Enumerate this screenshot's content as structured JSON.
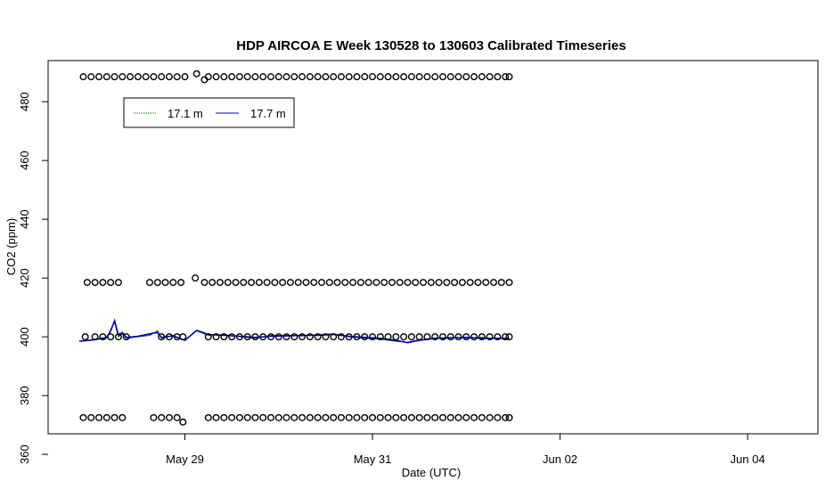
{
  "chart_data": {
    "type": "scatter",
    "title": "HDP AIRCOA E  Week 130528 to 130603  Calibrated Timeseries",
    "xlabel": "Date (UTC)",
    "ylabel": "CO2 (ppm)",
    "x_unit": "days",
    "x_tick_labels": [
      "May 29",
      "May 31",
      "Jun 02",
      "Jun 04"
    ],
    "x_ticks": [
      "2013-05-29",
      "2013-05-31",
      "2013-06-02",
      "2013-06-04"
    ],
    "y_ticks": [
      360,
      380,
      400,
      420,
      440,
      460,
      480
    ],
    "xlim": [
      "2013-05-27 13:00",
      "2013-06-04 18:00"
    ],
    "ylim": [
      367,
      494
    ],
    "legend": {
      "placement": "top-left",
      "entries": [
        {
          "label": "17.1 m",
          "color": "#006400"
        },
        {
          "label": "17.7 m",
          "color": "#0000cc"
        }
      ]
    },
    "colors": {
      "points": "#000000",
      "series_17_1": "#006400",
      "series_17_7": "#0000cc"
    },
    "point_groups": [
      {
        "level": 488.5,
        "times": [
          "2013-05-27 22:00",
          "2013-05-28 00:00",
          "2013-05-28 02:00",
          "2013-05-28 04:00",
          "2013-05-28 06:00",
          "2013-05-28 08:00",
          "2013-05-28 10:00",
          "2013-05-28 12:00",
          "2013-05-28 14:00",
          "2013-05-28 16:00",
          "2013-05-28 18:00",
          "2013-05-28 20:00",
          "2013-05-28 22:00",
          "2013-05-29 00:00",
          "2013-05-29 06:00",
          "2013-05-29 08:00",
          "2013-05-29 10:00",
          "2013-05-29 12:00",
          "2013-05-29 14:00",
          "2013-05-29 16:00",
          "2013-05-29 18:00",
          "2013-05-29 20:00",
          "2013-05-29 22:00",
          "2013-05-30 00:00",
          "2013-05-30 02:00",
          "2013-05-30 04:00",
          "2013-05-30 06:00",
          "2013-05-30 08:00",
          "2013-05-30 10:00",
          "2013-05-30 12:00",
          "2013-05-30 14:00",
          "2013-05-30 16:00",
          "2013-05-30 18:00",
          "2013-05-30 20:00",
          "2013-05-30 22:00",
          "2013-05-31 00:00",
          "2013-05-31 02:00",
          "2013-05-31 04:00",
          "2013-05-31 06:00",
          "2013-05-31 08:00",
          "2013-05-31 10:00",
          "2013-05-31 12:00",
          "2013-05-31 14:00",
          "2013-05-31 16:00",
          "2013-05-31 18:00",
          "2013-05-31 20:00",
          "2013-05-31 22:00",
          "2013-06-01 00:00",
          "2013-06-01 02:00",
          "2013-06-01 04:00",
          "2013-06-01 06:00",
          "2013-06-01 08:00",
          "2013-06-01 10:00",
          "2013-06-01 11:00"
        ]
      },
      {
        "level": 418.5,
        "times": [
          "2013-05-27 23:00",
          "2013-05-28 01:00",
          "2013-05-28 03:00",
          "2013-05-28 05:00",
          "2013-05-28 07:00",
          "2013-05-28 15:00",
          "2013-05-28 17:00",
          "2013-05-28 19:00",
          "2013-05-28 21:00",
          "2013-05-28 23:00",
          "2013-05-29 05:00",
          "2013-05-29 07:00",
          "2013-05-29 09:00",
          "2013-05-29 11:00",
          "2013-05-29 13:00",
          "2013-05-29 15:00",
          "2013-05-29 17:00",
          "2013-05-29 19:00",
          "2013-05-29 21:00",
          "2013-05-29 23:00",
          "2013-05-30 01:00",
          "2013-05-30 03:00",
          "2013-05-30 05:00",
          "2013-05-30 07:00",
          "2013-05-30 09:00",
          "2013-05-30 11:00",
          "2013-05-30 13:00",
          "2013-05-30 15:00",
          "2013-05-30 17:00",
          "2013-05-30 19:00",
          "2013-05-30 21:00",
          "2013-05-30 23:00",
          "2013-05-31 01:00",
          "2013-05-31 03:00",
          "2013-05-31 05:00",
          "2013-05-31 07:00",
          "2013-05-31 09:00",
          "2013-05-31 11:00",
          "2013-05-31 13:00",
          "2013-05-31 15:00",
          "2013-05-31 17:00",
          "2013-05-31 19:00",
          "2013-05-31 21:00",
          "2013-05-31 23:00",
          "2013-06-01 01:00",
          "2013-06-01 03:00",
          "2013-06-01 05:00",
          "2013-06-01 07:00",
          "2013-06-01 09:00",
          "2013-06-01 11:00"
        ]
      },
      {
        "level": 400,
        "times": [
          "2013-05-27 22:30",
          "2013-05-28 01:00",
          "2013-05-28 03:00",
          "2013-05-28 05:00",
          "2013-05-28 07:00",
          "2013-05-28 09:00",
          "2013-05-28 18:00",
          "2013-05-28 20:00",
          "2013-05-28 22:00",
          "2013-05-28 23:30",
          "2013-05-29 06:00",
          "2013-05-29 08:00",
          "2013-05-29 10:00",
          "2013-05-29 12:00",
          "2013-05-29 14:00",
          "2013-05-29 16:00",
          "2013-05-29 18:00",
          "2013-05-29 20:00",
          "2013-05-29 22:00",
          "2013-05-30 00:00",
          "2013-05-30 02:00",
          "2013-05-30 04:00",
          "2013-05-30 06:00",
          "2013-05-30 08:00",
          "2013-05-30 10:00",
          "2013-05-30 12:00",
          "2013-05-30 14:00",
          "2013-05-30 16:00",
          "2013-05-30 18:00",
          "2013-05-30 20:00",
          "2013-05-30 22:00",
          "2013-05-31 00:00",
          "2013-05-31 02:00",
          "2013-05-31 04:00",
          "2013-05-31 06:00",
          "2013-05-31 08:00",
          "2013-05-31 10:00",
          "2013-05-31 12:00",
          "2013-05-31 14:00",
          "2013-05-31 16:00",
          "2013-05-31 18:00",
          "2013-05-31 20:00",
          "2013-05-31 22:00",
          "2013-06-01 00:00",
          "2013-06-01 02:00",
          "2013-06-01 04:00",
          "2013-06-01 06:00",
          "2013-06-01 08:00",
          "2013-06-01 10:00",
          "2013-06-01 11:00"
        ]
      },
      {
        "level": 372.5,
        "times": [
          "2013-05-27 22:00",
          "2013-05-28 00:00",
          "2013-05-28 02:00",
          "2013-05-28 04:00",
          "2013-05-28 06:00",
          "2013-05-28 08:00",
          "2013-05-28 16:00",
          "2013-05-28 18:00",
          "2013-05-28 20:00",
          "2013-05-28 22:00",
          "2013-05-29 06:00",
          "2013-05-29 08:00",
          "2013-05-29 10:00",
          "2013-05-29 12:00",
          "2013-05-29 14:00",
          "2013-05-29 16:00",
          "2013-05-29 18:00",
          "2013-05-29 20:00",
          "2013-05-29 22:00",
          "2013-05-30 00:00",
          "2013-05-30 02:00",
          "2013-05-30 04:00",
          "2013-05-30 06:00",
          "2013-05-30 08:00",
          "2013-05-30 10:00",
          "2013-05-30 12:00",
          "2013-05-30 14:00",
          "2013-05-30 16:00",
          "2013-05-30 18:00",
          "2013-05-30 20:00",
          "2013-05-30 22:00",
          "2013-05-31 00:00",
          "2013-05-31 02:00",
          "2013-05-31 04:00",
          "2013-05-31 06:00",
          "2013-05-31 08:00",
          "2013-05-31 10:00",
          "2013-05-31 12:00",
          "2013-05-31 14:00",
          "2013-05-31 16:00",
          "2013-05-31 18:00",
          "2013-05-31 20:00",
          "2013-05-31 22:00",
          "2013-06-01 00:00",
          "2013-06-01 02:00",
          "2013-06-01 04:00",
          "2013-06-01 06:00",
          "2013-06-01 08:00",
          "2013-06-01 10:00",
          "2013-06-01 11:00"
        ]
      }
    ],
    "outlier_points": [
      {
        "x": "2013-05-29 03:00",
        "y": 489.5
      },
      {
        "x": "2013-05-29 05:00",
        "y": 487.5
      },
      {
        "x": "2013-05-29 02:40",
        "y": 420
      },
      {
        "x": "2013-05-28 23:30",
        "y": 371
      }
    ],
    "series": [
      {
        "name": "17.1 m",
        "color": "#006400",
        "points": [
          [
            "2013-05-27 21:00",
            398.5
          ],
          [
            "2013-05-28 00:00",
            398.8
          ],
          [
            "2013-05-28 02:00",
            399.2
          ],
          [
            "2013-05-28 04:00",
            399.6
          ],
          [
            "2013-05-28 05:00",
            402.5
          ],
          [
            "2013-05-28 06:00",
            405
          ],
          [
            "2013-05-28 07:00",
            400
          ],
          [
            "2013-05-28 08:00",
            401
          ],
          [
            "2013-05-28 09:00",
            399.5
          ],
          [
            "2013-05-28 12:00",
            400
          ],
          [
            "2013-05-28 15:00",
            400.5
          ],
          [
            "2013-05-28 17:00",
            402
          ],
          [
            "2013-05-28 18:00",
            399.5
          ],
          [
            "2013-05-28 21:00",
            400.5
          ],
          [
            "2013-05-29 00:00",
            398.8
          ],
          [
            "2013-05-29 03:00",
            402
          ],
          [
            "2013-05-29 06:00",
            400.5
          ],
          [
            "2013-05-29 10:00",
            400.8
          ],
          [
            "2013-05-29 14:00",
            400
          ],
          [
            "2013-05-29 18:00",
            399.5
          ],
          [
            "2013-05-29 22:00",
            400.5
          ],
          [
            "2013-05-30 02:00",
            400.5
          ],
          [
            "2013-05-30 06:00",
            400.3
          ],
          [
            "2013-05-30 10:00",
            400.8
          ],
          [
            "2013-05-30 14:00",
            401
          ],
          [
            "2013-05-30 18:00",
            400
          ],
          [
            "2013-05-30 22:00",
            399.5
          ],
          [
            "2013-05-31 02:00",
            399.2
          ],
          [
            "2013-05-31 06:00",
            398.5
          ],
          [
            "2013-05-31 09:00",
            398.2
          ],
          [
            "2013-05-31 12:00",
            399
          ],
          [
            "2013-05-31 16:00",
            399.5
          ],
          [
            "2013-05-31 20:00",
            399.8
          ],
          [
            "2013-06-01 00:00",
            399.5
          ],
          [
            "2013-06-01 04:00",
            399.8
          ],
          [
            "2013-06-01 08:00",
            399.3
          ],
          [
            "2013-06-01 11:00",
            399.6
          ]
        ]
      },
      {
        "name": "17.7 m",
        "color": "#0000cc",
        "points": [
          [
            "2013-05-27 21:00",
            398.5
          ],
          [
            "2013-05-28 00:00",
            398.9
          ],
          [
            "2013-05-28 02:00",
            399.3
          ],
          [
            "2013-05-28 04:00",
            399.8
          ],
          [
            "2013-05-28 05:00",
            402
          ],
          [
            "2013-05-28 06:00",
            405.5
          ],
          [
            "2013-05-28 07:00",
            400.5
          ],
          [
            "2013-05-28 08:00",
            401.5
          ],
          [
            "2013-05-28 09:00",
            399.8
          ],
          [
            "2013-05-28 12:00",
            400.2
          ],
          [
            "2013-05-28 15:00",
            401
          ],
          [
            "2013-05-28 17:00",
            401.5
          ],
          [
            "2013-05-28 18:00",
            399.8
          ],
          [
            "2013-05-28 21:00",
            400.3
          ],
          [
            "2013-05-29 00:00",
            398.8
          ],
          [
            "2013-05-29 03:00",
            402.2
          ],
          [
            "2013-05-29 06:00",
            400.8
          ],
          [
            "2013-05-29 10:00",
            400.5
          ],
          [
            "2013-05-29 14:00",
            400.2
          ],
          [
            "2013-05-29 18:00",
            399.8
          ],
          [
            "2013-05-29 22:00",
            400.2
          ],
          [
            "2013-05-30 02:00",
            400.3
          ],
          [
            "2013-05-30 06:00",
            400.5
          ],
          [
            "2013-05-30 10:00",
            400.5
          ],
          [
            "2013-05-30 14:00",
            400.8
          ],
          [
            "2013-05-30 18:00",
            400.2
          ],
          [
            "2013-05-30 22:00",
            399.8
          ],
          [
            "2013-05-31 02:00",
            399.5
          ],
          [
            "2013-05-31 06:00",
            398.8
          ],
          [
            "2013-05-31 09:00",
            398
          ],
          [
            "2013-05-31 12:00",
            398.8
          ],
          [
            "2013-05-31 16:00",
            399.5
          ],
          [
            "2013-05-31 20:00",
            399.6
          ],
          [
            "2013-06-01 00:00",
            399.8
          ],
          [
            "2013-06-01 04:00",
            399.5
          ],
          [
            "2013-06-01 08:00",
            399.5
          ],
          [
            "2013-06-01 11:00",
            399.4
          ]
        ]
      }
    ]
  }
}
